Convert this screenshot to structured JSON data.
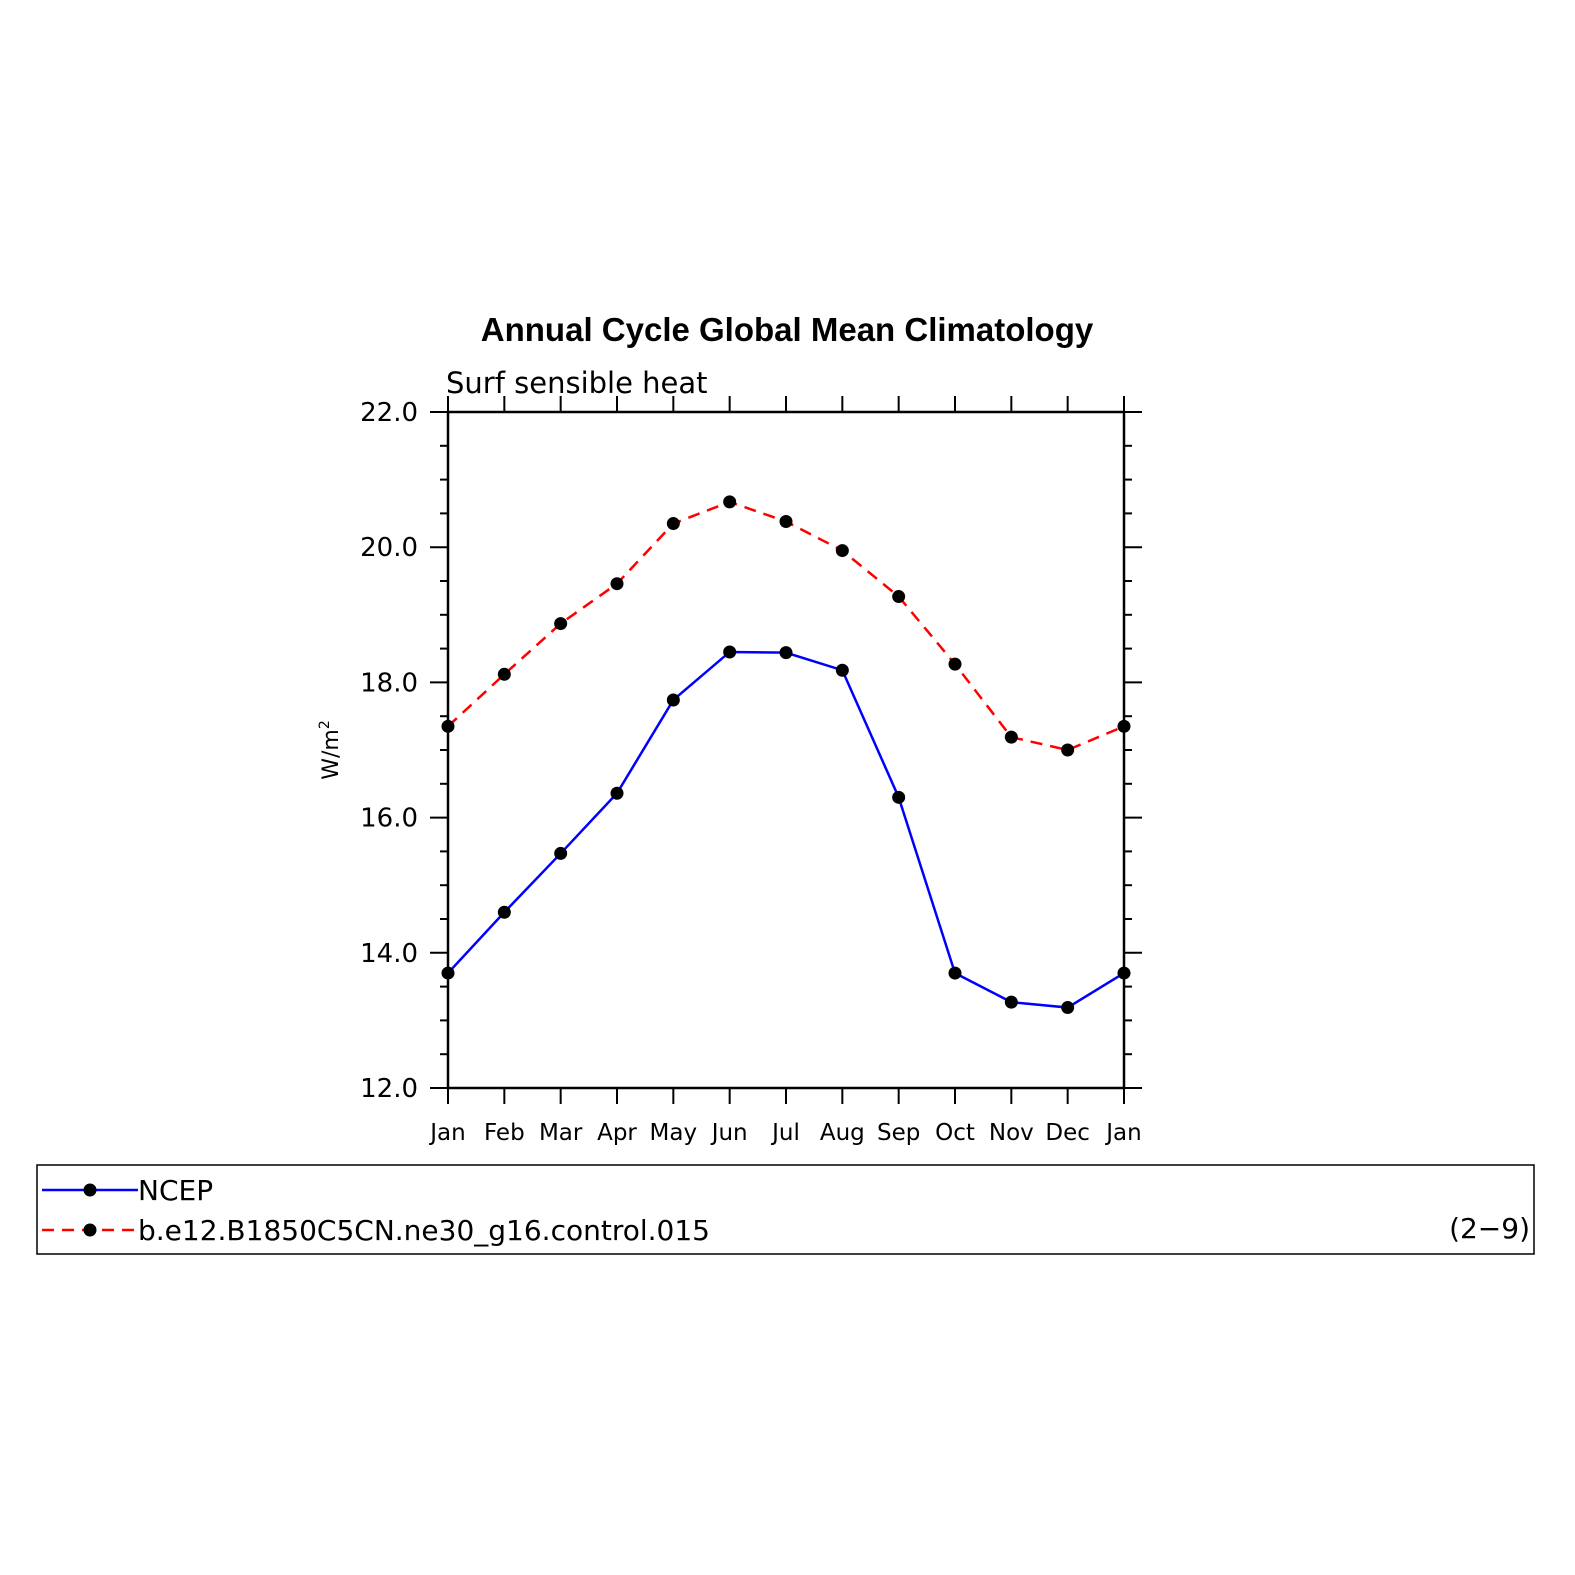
{
  "chart_data": {
    "type": "line",
    "title": "Annual Cycle Global Mean Climatology",
    "subtitle": "Surf sensible heat",
    "xlabel": "",
    "ylabel": "W/m",
    "ylabel_superscript": "2",
    "ylim": [
      12.0,
      22.0
    ],
    "yticks": [
      "12.0",
      "14.0",
      "16.0",
      "18.0",
      "20.0",
      "22.0"
    ],
    "categories": [
      "Jan",
      "Feb",
      "Mar",
      "Apr",
      "May",
      "Jun",
      "Jul",
      "Aug",
      "Sep",
      "Oct",
      "Nov",
      "Dec",
      "Jan"
    ],
    "series": [
      {
        "name": "NCEP",
        "color": "#0000ff",
        "style": "solid",
        "marker": "filled-circle",
        "values": [
          13.7,
          14.6,
          15.47,
          16.36,
          17.74,
          18.45,
          18.44,
          18.18,
          16.3,
          13.7,
          13.27,
          13.19,
          13.7
        ]
      },
      {
        "name": "b.e12.B1850C5CN.ne30_g16.control.015",
        "color": "#ff0000",
        "style": "dashed",
        "marker": "filled-circle",
        "values": [
          17.35,
          18.12,
          18.87,
          19.46,
          20.35,
          20.67,
          20.38,
          19.95,
          19.27,
          18.27,
          17.19,
          17.0,
          17.35
        ]
      }
    ],
    "legend_placement": "bottom",
    "grid": false,
    "annotation": "(2−9)"
  }
}
